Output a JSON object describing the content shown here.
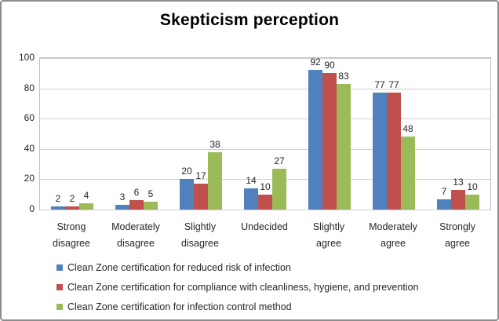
{
  "title": "Skepticism perception",
  "style": {
    "outer_border": "#8c8c8c",
    "plot_border": "#bfbfbf",
    "gridline": "#d0d0d0",
    "text": "#262626"
  },
  "chart_data": {
    "type": "bar",
    "title": "Skepticism perception",
    "categories": [
      "Strong disagree",
      "Moderately disagree",
      "Slightly disagree",
      "Undecided",
      "Slightly agree",
      "Moderately agree",
      "Strongly agree"
    ],
    "category_label_lines": [
      [
        "Strong",
        "disagree"
      ],
      [
        "Moderately",
        "disagree"
      ],
      [
        "Slightly",
        "disagree"
      ],
      [
        "Undecided"
      ],
      [
        "Slightly",
        "agree"
      ],
      [
        "Moderately",
        "agree"
      ],
      [
        "Strongly",
        "agree"
      ]
    ],
    "series": [
      {
        "name": "Clean Zone certification for reduced risk of infection",
        "color": "#4f81bd",
        "values": [
          2,
          3,
          20,
          14,
          92,
          77,
          7
        ]
      },
      {
        "name": "Clean Zone certification for compliance with cleanliness, hygiene, and prevention",
        "color": "#c0504d",
        "values": [
          2,
          6,
          17,
          10,
          90,
          77,
          13
        ]
      },
      {
        "name": "Clean Zone certification for infection control method",
        "color": "#9bbb59",
        "values": [
          4,
          5,
          38,
          27,
          83,
          48,
          10
        ]
      }
    ],
    "ylim": [
      0,
      100
    ],
    "yticks": [
      0,
      20,
      40,
      60,
      80,
      100
    ],
    "grid": true,
    "data_labels": true,
    "legend_position": "bottom-left",
    "xlabel": "",
    "ylabel": ""
  }
}
